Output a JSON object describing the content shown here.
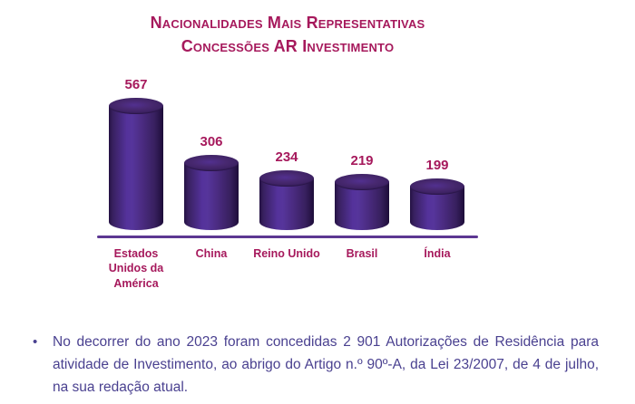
{
  "title": {
    "line1": "Nacionalidades Mais Representativas",
    "line2": "Concessões AR Investimento",
    "color": "#A6195C"
  },
  "chart_data": {
    "type": "bar",
    "style": "3d-cylinder",
    "title": "Nacionalidades Mais Representativas — Concessões AR Investimento",
    "categories": [
      "Estados Unidos da América",
      "China",
      "Reino Unido",
      "Brasil",
      "Índia"
    ],
    "values": [
      567,
      306,
      234,
      219,
      199
    ],
    "data_labels_shown": true,
    "xlabel": "",
    "ylabel": "",
    "ylim": [
      0,
      600
    ],
    "grid": false,
    "legend": "none",
    "bar_color": "#4B2A80",
    "bar_highlight_color": "#56359B",
    "bar_edge_color": "#241143",
    "label_color": "#A6195C",
    "axis_line_color": "#5C3792"
  },
  "note": {
    "bullet": "•",
    "text": "No decorrer do ano 2023 foram concedidas 2 901 Autorizações de Residência para atividade de Investimento, ao abrigo do Artigo n.º 90º-A, da Lei 23/2007, de 4 de julho, na sua redação atual.",
    "color": "#4A4190"
  }
}
